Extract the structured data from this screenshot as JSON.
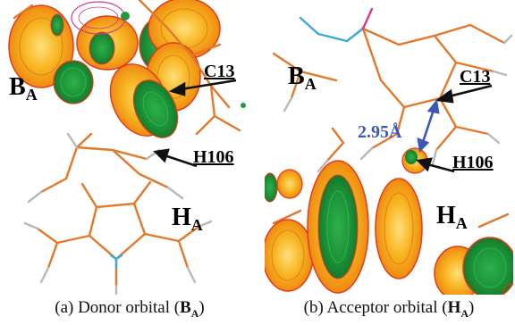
{
  "panel_a": {
    "ring_label": "B",
    "ring_label_sub": "A",
    "lower_label": "H",
    "lower_label_sub": "A",
    "atom_label_1": "C13",
    "atom_label_2": "H106",
    "caption_prefix": "(a) Donor orbital (",
    "caption_bold": "B",
    "caption_bold_sub": "A",
    "caption_suffix": ")"
  },
  "panel_b": {
    "ring_label": "B",
    "ring_label_sub": "A",
    "lower_label": "H",
    "lower_label_sub": "A",
    "atom_label_1": "C13",
    "atom_label_2": "H106",
    "distance": "2.95Å",
    "caption_prefix": "(b) Acceptor orbital (",
    "caption_bold": "H",
    "caption_bold_sub": "A",
    "caption_suffix": ")"
  },
  "colors": {
    "bond": "#e2782a",
    "nitrogen": "#3aaad8",
    "hydrogen": "#b8b8b8",
    "lobe_yellow": "#f6b823",
    "lobe_green": "#1f9a3c",
    "lobe_edge": "#e23b1c",
    "arrow": "#111111",
    "distance_arrow": "#3c57b8"
  }
}
